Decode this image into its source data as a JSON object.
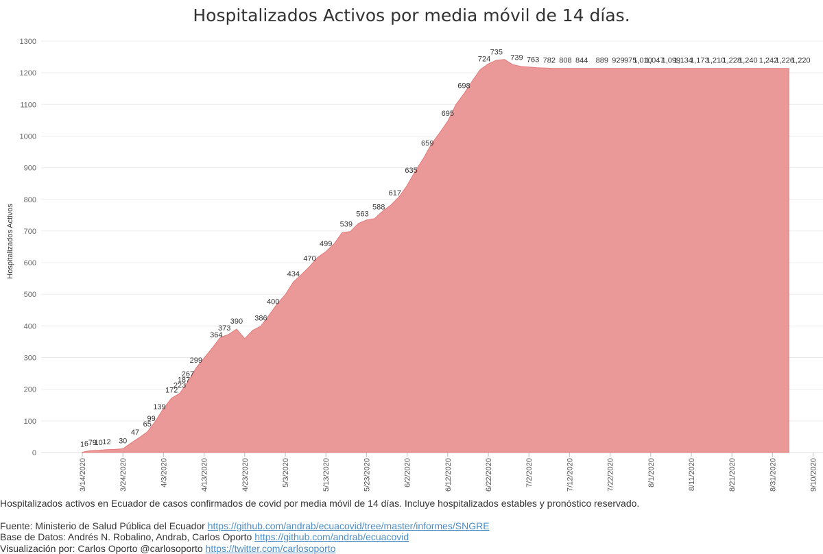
{
  "chart_data": {
    "type": "area",
    "title": "Hospitalizados Activos por media móvil de 14 días.",
    "ylabel": "Hospitalizados Activos",
    "xlabel": "",
    "ylim": [
      0,
      1300
    ],
    "y_ticks": [
      "0",
      "100",
      "200",
      "300",
      "400",
      "500",
      "600",
      "700",
      "800",
      "900",
      "1000",
      "1100",
      "1200",
      "1300"
    ],
    "x_ticks": [
      "3/14/2020",
      "3/24/2020",
      "4/3/2020",
      "4/13/2020",
      "4/23/2020",
      "5/3/2020",
      "5/13/2020",
      "5/23/2020",
      "6/2/2020",
      "6/12/2020",
      "6/22/2020",
      "7/2/2020",
      "7/12/2020",
      "7/22/2020",
      "8/1/2020",
      "8/11/2020",
      "8/21/2020",
      "8/31/2020",
      "9/10/2020"
    ],
    "grid": true,
    "colors": {
      "area": "#eb9898",
      "line": "#e07b7b",
      "grid": "#ececec"
    },
    "series": [
      {
        "x": [
          0,
          2,
          4,
          6,
          8,
          10,
          12,
          14,
          16,
          18,
          20,
          22,
          24,
          26,
          28,
          30,
          32,
          34,
          36,
          38,
          40,
          42,
          44,
          46,
          48,
          50,
          52,
          54,
          56,
          58,
          60,
          62,
          64,
          66,
          68,
          70,
          72,
          74,
          76,
          78,
          80,
          82,
          84,
          86,
          88,
          90,
          92,
          94,
          96,
          98,
          100,
          102,
          104,
          106,
          108,
          110,
          112,
          114,
          116,
          118,
          120,
          122,
          124,
          126,
          128,
          130,
          132,
          134,
          136,
          138,
          140,
          142,
          144,
          146,
          148,
          150,
          152,
          154,
          156,
          158,
          160,
          162,
          164,
          166,
          168,
          170,
          172,
          174
        ],
        "values": [
          1,
          6,
          7,
          9,
          10,
          12,
          30,
          47,
          65,
          99,
          139,
          172,
          187,
          223,
          267,
          299,
          330,
          364,
          373,
          390,
          360,
          386,
          400,
          434,
          470,
          499,
          539,
          563,
          588,
          617,
          635,
          659,
          695,
          698,
          724,
          735,
          739,
          763,
          782,
          808,
          844,
          889,
          929,
          975,
          1010,
          1047,
          1099,
          1134,
          1173,
          1210,
          1228,
          1240,
          1242,
          1226,
          1220,
          1218,
          1216,
          1215,
          1214,
          1214,
          1214,
          1214,
          1214,
          1214,
          1214,
          1214,
          1214,
          1214,
          1214,
          1214,
          1214,
          1214,
          1214,
          1214,
          1214,
          1214,
          1214,
          1214,
          1214,
          1214,
          1214,
          1214,
          1214,
          1214,
          1214,
          1214,
          1214,
          1214
        ]
      }
    ],
    "labels": [
      {
        "x": 0,
        "text": "1"
      },
      {
        "x": 1,
        "text": "6"
      },
      {
        "x": 2,
        "text": "7"
      },
      {
        "x": 3,
        "text": "9"
      },
      {
        "x": 4,
        "text": "10"
      },
      {
        "x": 6,
        "text": "12"
      },
      {
        "x": 10,
        "text": "30"
      },
      {
        "x": 13,
        "text": "47"
      },
      {
        "x": 16,
        "text": "65"
      },
      {
        "x": 17,
        "text": "99"
      },
      {
        "x": 19,
        "text": "139"
      },
      {
        "x": 22,
        "text": "172"
      },
      {
        "x": 25,
        "text": "187"
      },
      {
        "x": 24,
        "text": "223"
      },
      {
        "x": 26,
        "text": "267"
      },
      {
        "x": 28,
        "text": "299"
      },
      {
        "x": 33,
        "text": "364"
      },
      {
        "x": 35,
        "text": "373"
      },
      {
        "x": 38,
        "text": "390"
      },
      {
        "x": 44,
        "text": "386"
      },
      {
        "x": 47,
        "text": "400"
      },
      {
        "x": 52,
        "text": "434"
      },
      {
        "x": 56,
        "text": "470"
      },
      {
        "x": 60,
        "text": "499"
      },
      {
        "x": 65,
        "text": "539"
      },
      {
        "x": 69,
        "text": "563"
      },
      {
        "x": 73,
        "text": "588"
      },
      {
        "x": 77,
        "text": "617"
      },
      {
        "x": 81,
        "text": "635"
      },
      {
        "x": 85,
        "text": "659"
      },
      {
        "x": 90,
        "text": "695"
      },
      {
        "x": 94,
        "text": "698"
      },
      {
        "x": 99,
        "text": "724"
      },
      {
        "x": 102,
        "text": "735"
      },
      {
        "x": 107,
        "text": "739"
      },
      {
        "x": 111,
        "text": "763"
      },
      {
        "x": 115,
        "text": "782"
      },
      {
        "x": 119,
        "text": "808"
      },
      {
        "x": 123,
        "text": "844"
      },
      {
        "x": 128,
        "text": "889"
      },
      {
        "x": 132,
        "text": "929"
      },
      {
        "x": 135,
        "text": "975"
      },
      {
        "x": 138,
        "text": "1,010"
      },
      {
        "x": 141,
        "text": "1,047"
      },
      {
        "x": 145,
        "text": "1,099"
      },
      {
        "x": 148,
        "text": "1,134"
      },
      {
        "x": 152,
        "text": "1,173"
      },
      {
        "x": 156,
        "text": "1,210"
      },
      {
        "x": 160,
        "text": "1,228"
      },
      {
        "x": 164,
        "text": "1,240"
      },
      {
        "x": 169,
        "text": "1,242"
      },
      {
        "x": 173,
        "text": "1,226"
      },
      {
        "x": 177,
        "text": "1,220"
      }
    ]
  },
  "footer": {
    "description": "Hospitalizados activos en Ecuador de casos confirmados de covid por media móvil de 14 días. Incluye hospitalizados estables y pronóstico reservado.",
    "source_prefix": "Fuente: Ministerio de Salud Pública del Ecuador ",
    "source_link": "https://github.com/andrab/ecuacovid/tree/master/informes/SNGRE",
    "db_prefix": "Base de Datos: Andrés N. Robalino, Andrab, Carlos Oporto ",
    "db_link": "https://github.com/andrab/ecuacovid",
    "viz_prefix": "Visualización por: Carlos Oporto @carlosoporto ",
    "viz_link": "https://twitter.com/carlosoporto"
  }
}
